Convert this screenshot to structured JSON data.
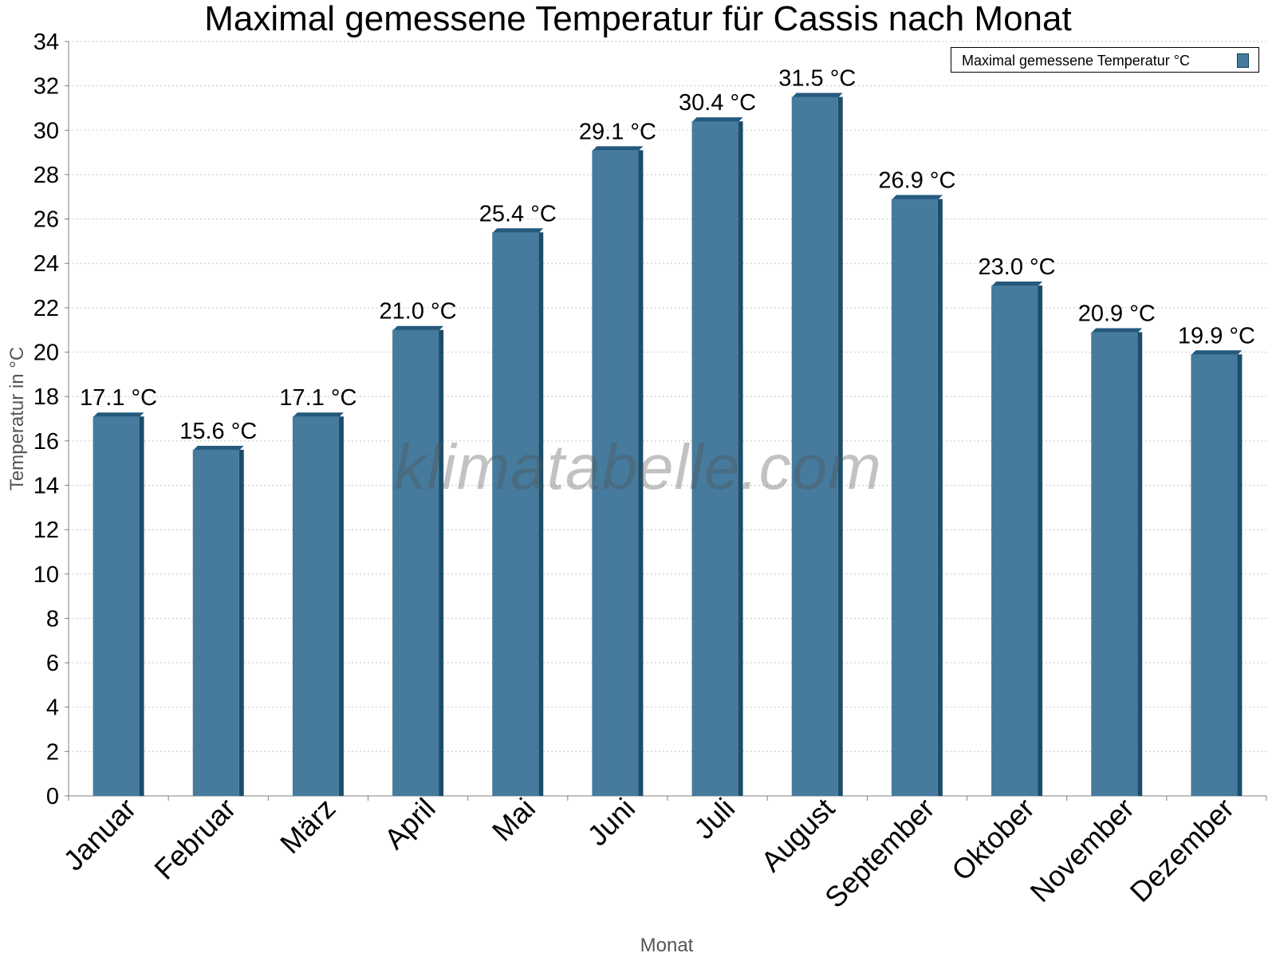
{
  "chart_data": {
    "type": "bar",
    "title": "Maximal gemessene Temperatur für Cassis nach Monat",
    "xlabel": "Monat",
    "ylabel": "Temperatur in °C",
    "watermark": "klimatabelle.com",
    "categories": [
      "Januar",
      "Februar",
      "März",
      "April",
      "Mai",
      "Juni",
      "Juli",
      "August",
      "September",
      "Oktober",
      "November",
      "Dezember"
    ],
    "series": [
      {
        "name": "Maximal gemessene Temperatur °C",
        "values": [
          17.1,
          15.6,
          17.1,
          21.0,
          25.4,
          29.1,
          30.4,
          31.5,
          26.9,
          23.0,
          20.9,
          19.9
        ],
        "data_labels": [
          "17.1 °C",
          "15.6 °C",
          "17.1 °C",
          "21.0 °C",
          "25.4 °C",
          "29.1 °C",
          "30.4 °C",
          "31.5 °C",
          "26.9 °C",
          "23.0 °C",
          "20.9 °C",
          "19.9 °C"
        ]
      }
    ],
    "ylim": [
      0,
      34
    ],
    "yticks": [
      0,
      2,
      4,
      6,
      8,
      10,
      12,
      14,
      16,
      18,
      20,
      22,
      24,
      26,
      28,
      30,
      32,
      34
    ],
    "grid": true,
    "legend_position": "top-right",
    "colors": {
      "bar_fill": "#467b9d",
      "bar_side": "#1c4d6b",
      "bar_top": "#255a7d",
      "grid": "#c8c8c8",
      "axis": "#808080"
    }
  }
}
